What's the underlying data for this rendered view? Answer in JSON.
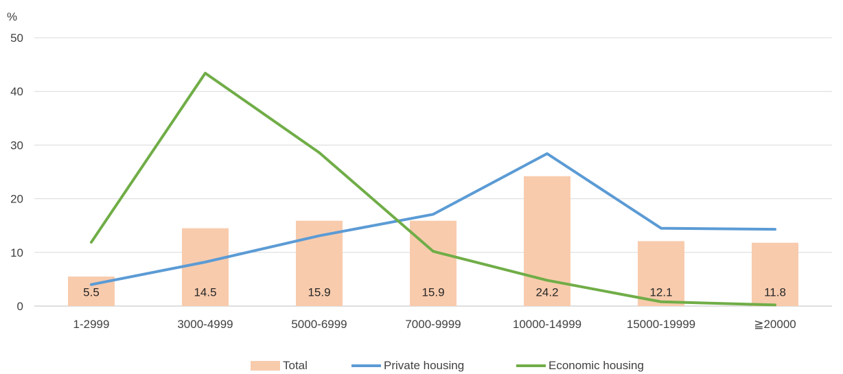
{
  "chart_data": {
    "type": "bar",
    "unit_label": "%",
    "categories": [
      "1-2999",
      "3000-4999",
      "5000-6999",
      "7000-9999",
      "10000-14999",
      "15000-19999",
      "≧20000"
    ],
    "ylim": [
      0,
      50
    ],
    "yticks": [
      0,
      10,
      20,
      30,
      40,
      50
    ],
    "grid": true,
    "legend_position": "bottom",
    "series": [
      {
        "name": "Total",
        "kind": "bar",
        "color": "#F8CBAD",
        "values": [
          5.5,
          14.5,
          15.9,
          15.9,
          24.2,
          12.1,
          11.8
        ],
        "labels": [
          "5.5",
          "14.5",
          "15.9",
          "15.9",
          "24.2",
          "12.1",
          "11.8"
        ]
      },
      {
        "name": "Private housing",
        "kind": "line",
        "color": "#5B9BD5",
        "values": [
          4.0,
          8.2,
          13.1,
          17.1,
          28.4,
          14.5,
          14.3
        ]
      },
      {
        "name": "Economic housing",
        "kind": "line",
        "color": "#70AD47",
        "values": [
          11.9,
          43.4,
          28.6,
          10.2,
          4.8,
          0.8,
          0.2
        ]
      }
    ]
  }
}
